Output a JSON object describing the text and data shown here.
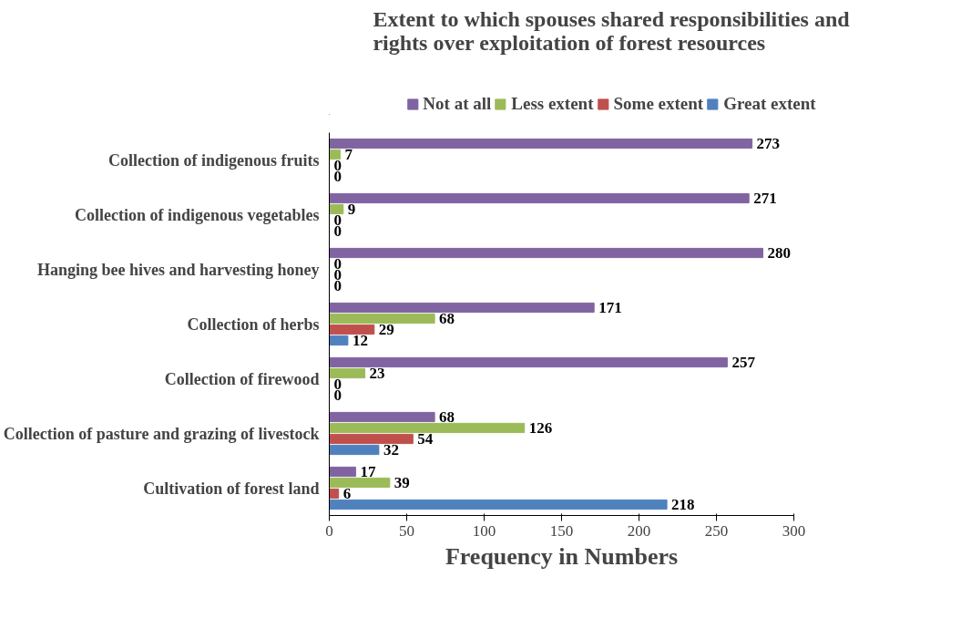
{
  "chart_data": {
    "type": "bar",
    "orientation": "horizontal",
    "title": "Extent to which spouses shared responsibilities and rights over exploitation of forest resources",
    "xlabel": "Frequency in Numbers",
    "categories": [
      "Collection of indigenous fruits",
      "Collection of indigenous vegetables",
      "Hanging bee hives and harvesting honey",
      "Collection of herbs",
      "Collection of firewood",
      "Collection of pasture and grazing of livestock",
      "Cultivation of forest land"
    ],
    "series": [
      {
        "name": "Not at all",
        "color": "#8064a2",
        "values": [
          273,
          271,
          280,
          171,
          257,
          68,
          17
        ]
      },
      {
        "name": "Less extent",
        "color": "#9bbb59",
        "values": [
          7,
          9,
          0,
          68,
          23,
          126,
          39
        ]
      },
      {
        "name": "Some extent",
        "color": "#c0504d",
        "values": [
          0,
          0,
          0,
          29,
          0,
          54,
          6
        ]
      },
      {
        "name": "Great extent",
        "color": "#4f81bd",
        "values": [
          0,
          0,
          0,
          12,
          0,
          32,
          218
        ]
      }
    ],
    "xlim": [
      0,
      300
    ],
    "xticks": [
      0,
      50,
      100,
      150,
      200,
      250,
      300
    ],
    "data_labels": true,
    "legend": "top",
    "grid": false
  }
}
